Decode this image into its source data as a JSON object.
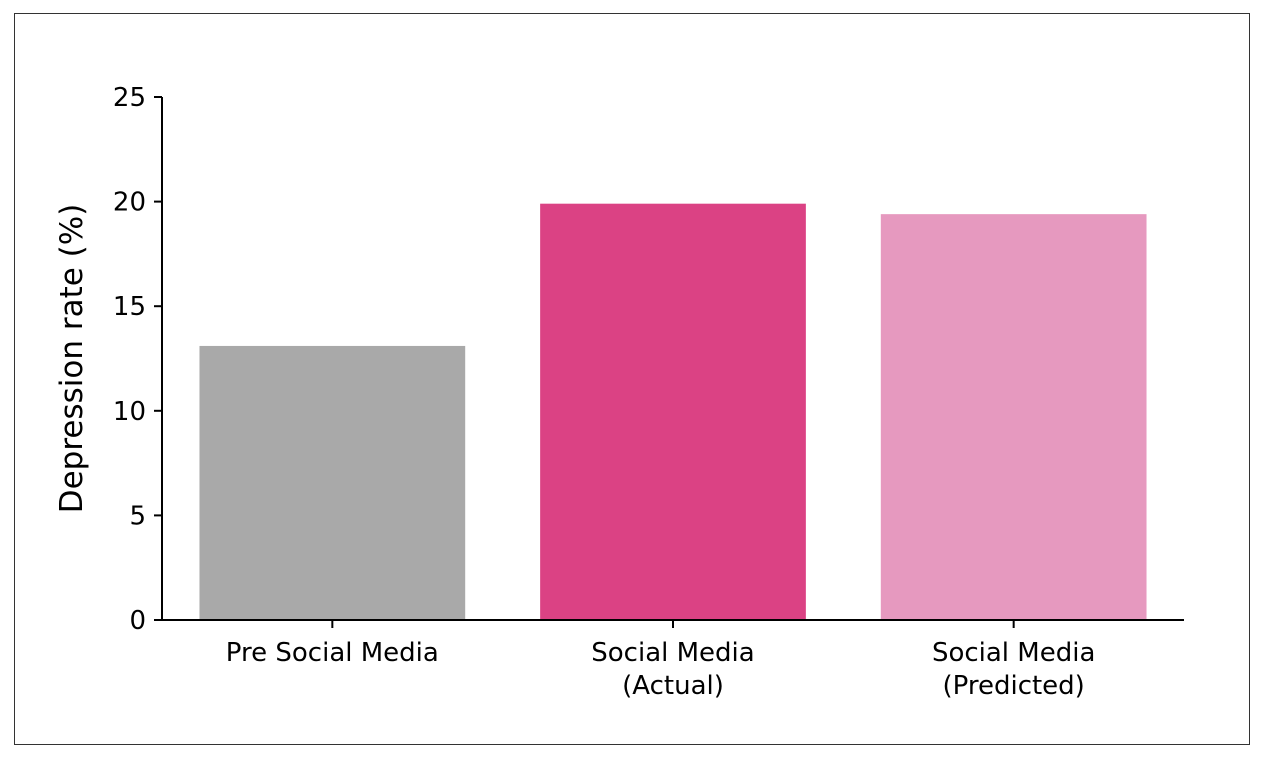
{
  "chart_data": {
    "type": "bar",
    "categories": [
      [
        "Pre Social Media"
      ],
      [
        "Social Media",
        "(Actual)"
      ],
      [
        "Social Media",
        "(Predicted)"
      ]
    ],
    "values": [
      13.1,
      19.9,
      19.4
    ],
    "colors": [
      "#a9a9a9",
      "#db4284",
      "#e699bf"
    ],
    "ylabel": "Depression rate (%)",
    "ylim": [
      0,
      25
    ],
    "yticks": [
      0,
      5,
      10,
      15,
      20,
      25
    ],
    "grid": false,
    "legend": "none"
  }
}
